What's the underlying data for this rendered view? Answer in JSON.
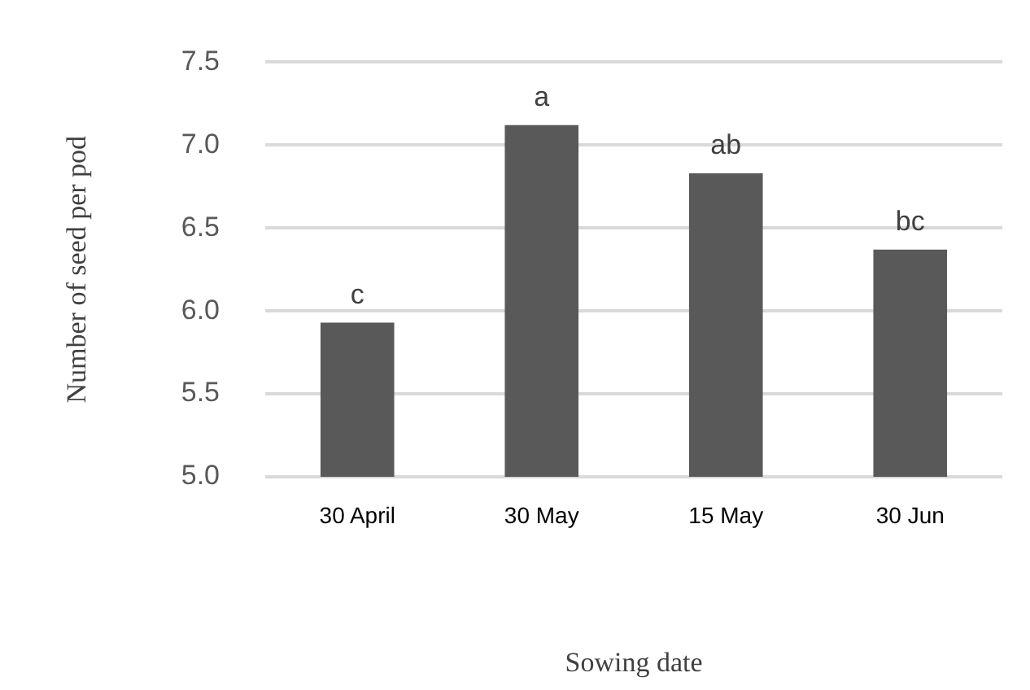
{
  "chart_data": {
    "type": "bar",
    "xlabel": "Sowing date",
    "ylabel": "Number of seed per pod",
    "categories": [
      "30 April",
      "30 May",
      "15 May",
      "30 Jun"
    ],
    "values": [
      5.93,
      7.12,
      6.83,
      6.37
    ],
    "color": "#595959",
    "ylim": [
      5,
      7.5
    ],
    "yticks": [
      {
        "value": 5,
        "label": "5.0"
      },
      5.5,
      {
        "value": 6,
        "label": "6.0"
      },
      6.5,
      {
        "value": 7,
        "label": "7.0"
      },
      7.5
    ],
    "grid": "y",
    "annotations": [
      {
        "text": "c",
        "x": "30 April",
        "y": 5.93
      },
      {
        "text": "a",
        "x": "30 May",
        "y": 7.12
      },
      {
        "text": "ab",
        "x": "15 May",
        "y": 6.83
      },
      {
        "text": "bc",
        "x": "30 Jun",
        "y": 6.37
      }
    ]
  }
}
